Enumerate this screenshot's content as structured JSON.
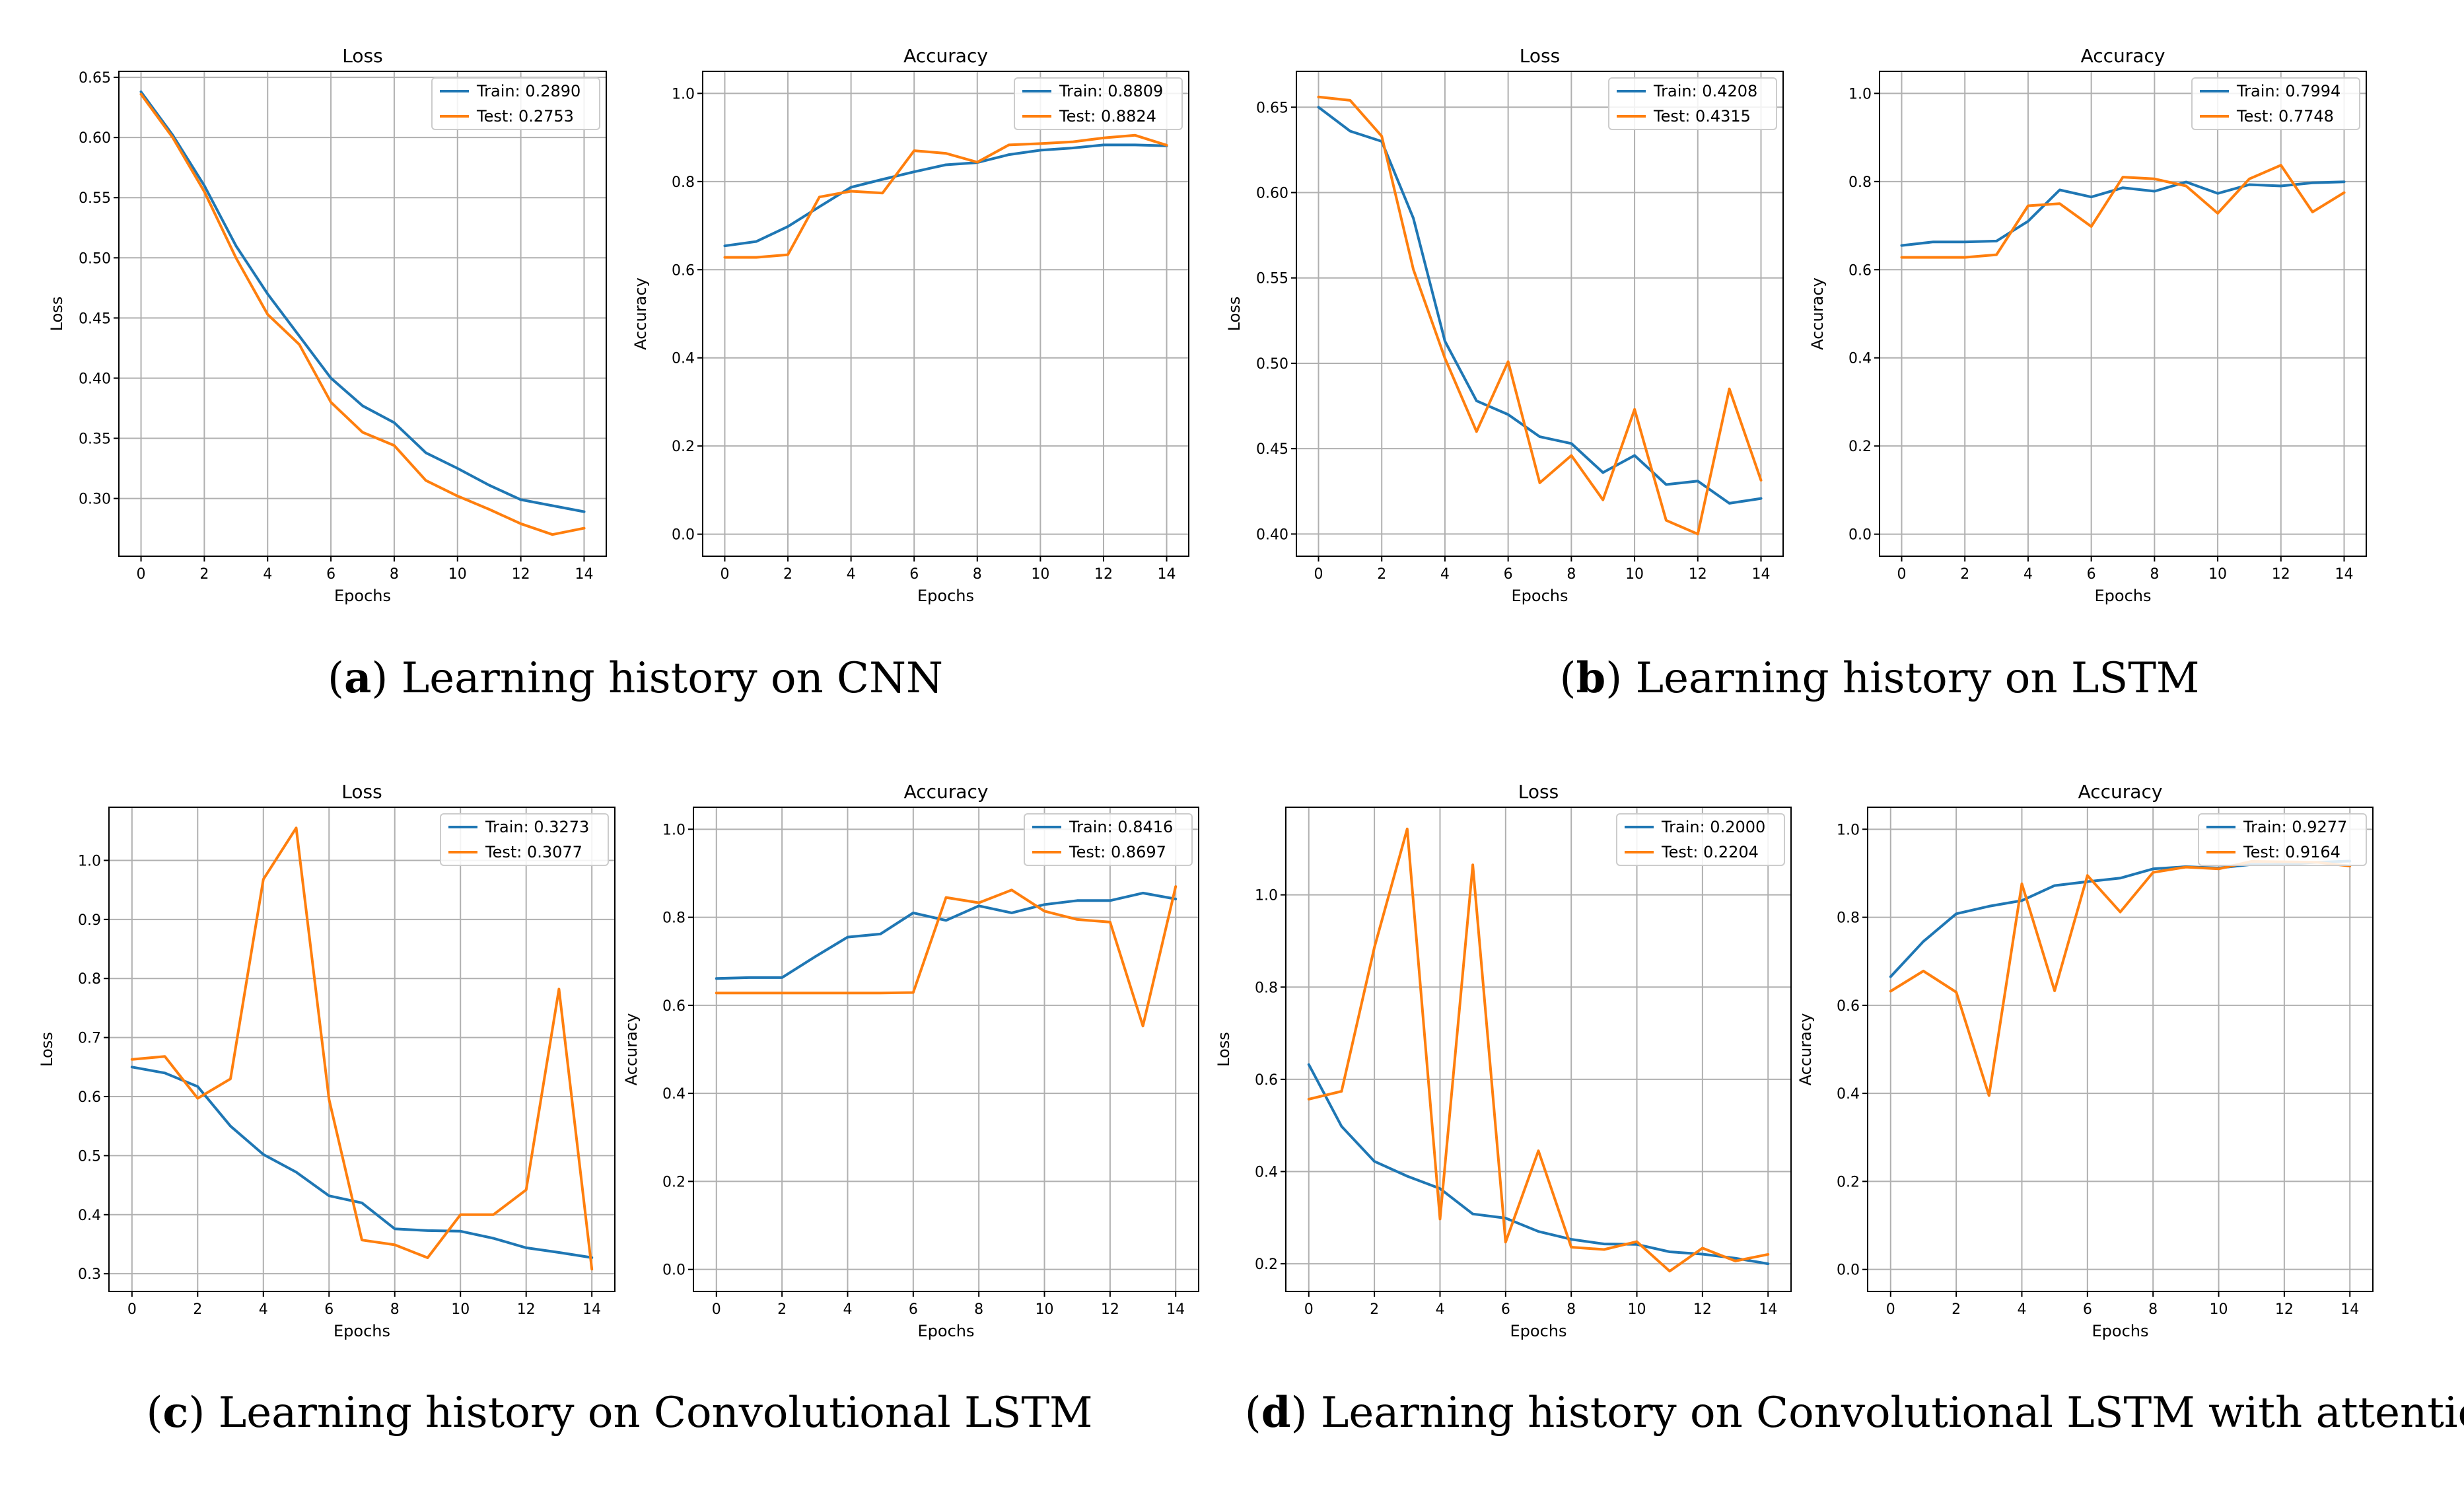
{
  "colors": {
    "train": "#1f77b4",
    "test": "#ff7f0e"
  },
  "captions": [
    {
      "letter": "a",
      "text": "Learning history on CNN"
    },
    {
      "letter": "b",
      "text": "Learning history on LSTM"
    },
    {
      "letter": "c",
      "text": "Learning history on Convolutional LSTM"
    },
    {
      "letter": "d",
      "text": "Learning history on Convolutional LSTM with attention"
    }
  ],
  "chart_data": [
    {
      "type": "line",
      "panel": "a",
      "title": "Loss",
      "xlabel": "Epochs",
      "ylabel": "Loss",
      "x": [
        0,
        1,
        2,
        3,
        4,
        5,
        6,
        7,
        8,
        9,
        10,
        11,
        12,
        13,
        14
      ],
      "xlim": [
        -0.7,
        14.7
      ],
      "xticks": [
        0,
        2,
        4,
        6,
        8,
        10,
        12,
        14
      ],
      "ylim": [
        0.252,
        0.655
      ],
      "yticks": [
        0.3,
        0.35,
        0.4,
        0.45,
        0.5,
        0.55,
        0.6,
        0.65
      ],
      "ytick_decimals": 2,
      "legend_position": "top-right",
      "series": [
        {
          "name": "Train",
          "legend": "Train: 0.2890",
          "values": [
            0.638,
            0.602,
            0.56,
            0.51,
            0.47,
            0.435,
            0.4,
            0.377,
            0.363,
            0.338,
            0.325,
            0.311,
            0.299,
            0.294,
            0.289
          ]
        },
        {
          "name": "Test",
          "legend": "Test: 0.2753",
          "values": [
            0.636,
            0.6,
            0.555,
            0.5,
            0.453,
            0.428,
            0.38,
            0.355,
            0.344,
            0.315,
            0.302,
            0.291,
            0.279,
            0.27,
            0.2753
          ]
        }
      ]
    },
    {
      "type": "line",
      "panel": "a",
      "title": "Accuracy",
      "xlabel": "Epochs",
      "ylabel": "Accuracy",
      "x": [
        0,
        1,
        2,
        3,
        4,
        5,
        6,
        7,
        8,
        9,
        10,
        11,
        12,
        13,
        14
      ],
      "xlim": [
        -0.7,
        14.7
      ],
      "xticks": [
        0,
        2,
        4,
        6,
        8,
        10,
        12,
        14
      ],
      "ylim": [
        -0.05,
        1.05
      ],
      "yticks": [
        0.0,
        0.2,
        0.4,
        0.6,
        0.8,
        1.0
      ],
      "ytick_decimals": 1,
      "legend_position": "top-right",
      "series": [
        {
          "name": "Train",
          "legend": "Train: 0.8809",
          "values": [
            0.654,
            0.664,
            0.698,
            0.743,
            0.787,
            0.805,
            0.822,
            0.838,
            0.843,
            0.861,
            0.871,
            0.876,
            0.883,
            0.883,
            0.8809
          ]
        },
        {
          "name": "Test",
          "legend": "Test: 0.8824",
          "values": [
            0.628,
            0.628,
            0.634,
            0.765,
            0.778,
            0.774,
            0.87,
            0.864,
            0.844,
            0.883,
            0.886,
            0.89,
            0.899,
            0.905,
            0.8824
          ]
        }
      ]
    },
    {
      "type": "line",
      "panel": "b",
      "title": "Loss",
      "xlabel": "Epochs",
      "ylabel": "Loss",
      "x": [
        0,
        1,
        2,
        3,
        4,
        5,
        6,
        7,
        8,
        9,
        10,
        11,
        12,
        13,
        14
      ],
      "xlim": [
        -0.7,
        14.7
      ],
      "xticks": [
        0,
        2,
        4,
        6,
        8,
        10,
        12,
        14
      ],
      "ylim": [
        0.387,
        0.671
      ],
      "yticks": [
        0.4,
        0.45,
        0.5,
        0.55,
        0.6,
        0.65
      ],
      "ytick_decimals": 2,
      "legend_position": "top-right",
      "series": [
        {
          "name": "Train",
          "legend": "Train: 0.4208",
          "values": [
            0.65,
            0.636,
            0.63,
            0.585,
            0.513,
            0.478,
            0.47,
            0.457,
            0.453,
            0.436,
            0.446,
            0.429,
            0.431,
            0.418,
            0.4208
          ]
        },
        {
          "name": "Test",
          "legend": "Test: 0.4315",
          "values": [
            0.656,
            0.654,
            0.633,
            0.555,
            0.503,
            0.46,
            0.501,
            0.43,
            0.446,
            0.42,
            0.473,
            0.408,
            0.4,
            0.485,
            0.4315
          ]
        }
      ]
    },
    {
      "type": "line",
      "panel": "b",
      "title": "Accuracy",
      "xlabel": "Epochs",
      "ylabel": "Accuracy",
      "x": [
        0,
        1,
        2,
        3,
        4,
        5,
        6,
        7,
        8,
        9,
        10,
        11,
        12,
        13,
        14
      ],
      "xlim": [
        -0.7,
        14.7
      ],
      "xticks": [
        0,
        2,
        4,
        6,
        8,
        10,
        12,
        14
      ],
      "ylim": [
        -0.05,
        1.05
      ],
      "yticks": [
        0.0,
        0.2,
        0.4,
        0.6,
        0.8,
        1.0
      ],
      "ytick_decimals": 1,
      "legend_position": "top-right",
      "series": [
        {
          "name": "Train",
          "legend": "Train: 0.7994",
          "values": [
            0.655,
            0.663,
            0.663,
            0.665,
            0.71,
            0.781,
            0.765,
            0.786,
            0.778,
            0.799,
            0.773,
            0.793,
            0.79,
            0.797,
            0.7994
          ]
        },
        {
          "name": "Test",
          "legend": "Test: 0.7748",
          "values": [
            0.628,
            0.628,
            0.628,
            0.634,
            0.745,
            0.75,
            0.698,
            0.81,
            0.806,
            0.79,
            0.728,
            0.806,
            0.837,
            0.731,
            0.7748
          ]
        }
      ]
    },
    {
      "type": "line",
      "panel": "c",
      "title": "Loss",
      "xlabel": "Epochs",
      "ylabel": "Loss",
      "x": [
        0,
        1,
        2,
        3,
        4,
        5,
        6,
        7,
        8,
        9,
        10,
        11,
        12,
        13,
        14
      ],
      "xlim": [
        -0.7,
        14.7
      ],
      "xticks": [
        0,
        2,
        4,
        6,
        8,
        10,
        12,
        14
      ],
      "ylim": [
        0.27,
        1.09
      ],
      "yticks": [
        0.3,
        0.4,
        0.5,
        0.6,
        0.7,
        0.8,
        0.9,
        1.0
      ],
      "ytick_decimals": 1,
      "legend_position": "top-right",
      "series": [
        {
          "name": "Train",
          "legend": "Train: 0.3273",
          "values": [
            0.65,
            0.64,
            0.617,
            0.55,
            0.502,
            0.472,
            0.432,
            0.42,
            0.376,
            0.373,
            0.372,
            0.36,
            0.344,
            0.336,
            0.3273
          ]
        },
        {
          "name": "Test",
          "legend": "Test: 0.3077",
          "values": [
            0.663,
            0.668,
            0.597,
            0.63,
            0.968,
            1.055,
            0.595,
            0.357,
            0.349,
            0.327,
            0.4,
            0.4,
            0.442,
            0.782,
            0.3077
          ]
        }
      ]
    },
    {
      "type": "line",
      "panel": "c",
      "title": "Accuracy",
      "xlabel": "Epochs",
      "ylabel": "Accuracy",
      "x": [
        0,
        1,
        2,
        3,
        4,
        5,
        6,
        7,
        8,
        9,
        10,
        11,
        12,
        13,
        14
      ],
      "xlim": [
        -0.7,
        14.7
      ],
      "xticks": [
        0,
        2,
        4,
        6,
        8,
        10,
        12,
        14
      ],
      "ylim": [
        -0.05,
        1.05
      ],
      "yticks": [
        0.0,
        0.2,
        0.4,
        0.6,
        0.8,
        1.0
      ],
      "ytick_decimals": 1,
      "legend_position": "top-right",
      "series": [
        {
          "name": "Train",
          "legend": "Train: 0.8416",
          "values": [
            0.661,
            0.663,
            0.663,
            0.71,
            0.755,
            0.762,
            0.81,
            0.793,
            0.826,
            0.81,
            0.829,
            0.838,
            0.838,
            0.855,
            0.8416
          ]
        },
        {
          "name": "Test",
          "legend": "Test: 0.8697",
          "values": [
            0.628,
            0.628,
            0.628,
            0.628,
            0.628,
            0.628,
            0.629,
            0.845,
            0.833,
            0.862,
            0.814,
            0.795,
            0.789,
            0.553,
            0.8697
          ]
        }
      ]
    },
    {
      "type": "line",
      "panel": "d",
      "title": "Loss",
      "xlabel": "Epochs",
      "ylabel": "Loss",
      "x": [
        0,
        1,
        2,
        3,
        4,
        5,
        6,
        7,
        8,
        9,
        10,
        11,
        12,
        13,
        14
      ],
      "xlim": [
        -0.7,
        14.7
      ],
      "xticks": [
        0,
        2,
        4,
        6,
        8,
        10,
        12,
        14
      ],
      "ylim": [
        0.14,
        1.19
      ],
      "yticks": [
        0.2,
        0.4,
        0.6,
        0.8,
        1.0
      ],
      "ytick_decimals": 1,
      "legend_position": "top-right",
      "series": [
        {
          "name": "Train",
          "legend": "Train: 0.2000",
          "values": [
            0.632,
            0.498,
            0.422,
            0.39,
            0.363,
            0.308,
            0.299,
            0.27,
            0.253,
            0.243,
            0.242,
            0.226,
            0.221,
            0.212,
            0.2
          ]
        },
        {
          "name": "Test",
          "legend": "Test: 0.2204",
          "values": [
            0.557,
            0.574,
            0.886,
            1.143,
            0.297,
            1.065,
            0.247,
            0.445,
            0.236,
            0.231,
            0.248,
            0.184,
            0.234,
            0.206,
            0.2204
          ]
        }
      ]
    },
    {
      "type": "line",
      "panel": "d",
      "title": "Accuracy",
      "xlabel": "Epochs",
      "ylabel": "Accuracy",
      "x": [
        0,
        1,
        2,
        3,
        4,
        5,
        6,
        7,
        8,
        9,
        10,
        11,
        12,
        13,
        14
      ],
      "xlim": [
        -0.7,
        14.7
      ],
      "xticks": [
        0,
        2,
        4,
        6,
        8,
        10,
        12,
        14
      ],
      "ylim": [
        -0.05,
        1.05
      ],
      "yticks": [
        0.0,
        0.2,
        0.4,
        0.6,
        0.8,
        1.0
      ],
      "ytick_decimals": 1,
      "legend_position": "top-right",
      "series": [
        {
          "name": "Train",
          "legend": "Train: 0.9277",
          "values": [
            0.665,
            0.745,
            0.808,
            0.825,
            0.838,
            0.872,
            0.881,
            0.889,
            0.91,
            0.915,
            0.912,
            0.92,
            0.92,
            0.925,
            0.9277
          ]
        },
        {
          "name": "Test",
          "legend": "Test: 0.9164",
          "values": [
            0.632,
            0.678,
            0.63,
            0.395,
            0.876,
            0.633,
            0.895,
            0.812,
            0.902,
            0.914,
            0.91,
            0.927,
            0.926,
            0.925,
            0.9164
          ]
        }
      ]
    }
  ]
}
